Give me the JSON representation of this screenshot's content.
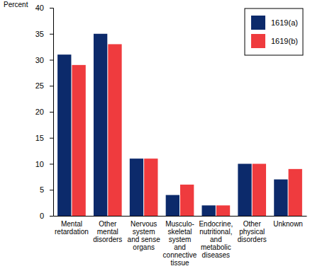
{
  "chart_data": {
    "type": "bar",
    "y_label": "Percent",
    "categories": [
      "Mental\nretardation",
      "Other\nmental\ndisorders",
      "Nervous\nsystem\nand sense\norgans",
      "Musculo-\nskeletal\nsystem\nand\nconnective\ntissue",
      "Endocrine,\nnutritional,\nand\nmetabolic\ndiseases",
      "Other\nphysical\ndisorders",
      "Unknown"
    ],
    "series": [
      {
        "name": "1619(a)",
        "color": "#0c2a6b",
        "values": [
          31,
          35,
          11,
          4,
          2,
          10,
          7
        ]
      },
      {
        "name": "1619(b)",
        "color": "#ef3b3e",
        "values": [
          29,
          33,
          11,
          6,
          2,
          10,
          9
        ]
      }
    ],
    "ylim": [
      0,
      40
    ],
    "yticks": [
      0,
      5,
      10,
      15,
      20,
      25,
      30,
      35,
      40
    ],
    "grid": false,
    "legend": "top-right"
  }
}
